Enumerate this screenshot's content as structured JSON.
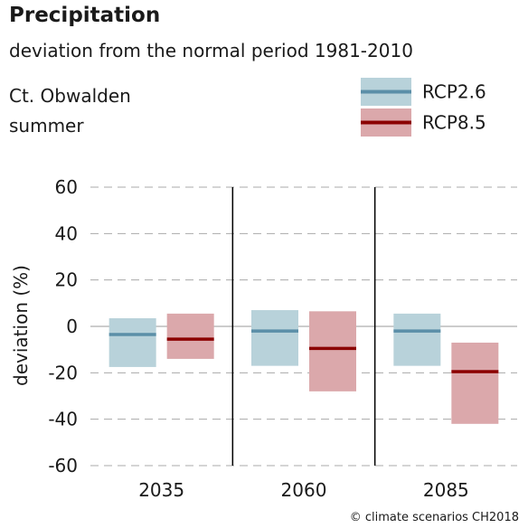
{
  "header": {
    "title": "Precipitation",
    "subtitle": "deviation from the normal period 1981-2010",
    "region": "Ct. Obwalden",
    "season": "summer"
  },
  "credit": "© climate scenarios CH2018",
  "colors": {
    "rcp26_box": "#b8d2da",
    "rcp26_median": "#5b8fa8",
    "rcp85_box": "#dba8ab",
    "rcp85_median": "#8b0000",
    "grid": "#aaaaaa",
    "zero_line": "#999999",
    "separator": "#000000"
  },
  "chart_data": {
    "type": "bar",
    "subtype": "range-boxes-with-median",
    "title": "Precipitation",
    "subtitle": "deviation from the normal period 1981-2010",
    "xlabel": "",
    "ylabel": "deviation (%)",
    "ylim": [
      -60,
      60
    ],
    "yticks": [
      60,
      40,
      20,
      0,
      -20,
      -40,
      -60
    ],
    "grid": true,
    "legend_position": "top-right",
    "categories": [
      "2035",
      "2060",
      "2085"
    ],
    "series": [
      {
        "name": "RCP2.6",
        "color": "#b8d2da",
        "median_color": "#5b8fa8",
        "low": [
          -17.5,
          -17,
          -17
        ],
        "median": [
          -3.5,
          -2,
          -2
        ],
        "high": [
          3.5,
          7,
          5.5
        ]
      },
      {
        "name": "RCP8.5",
        "color": "#dba8ab",
        "median_color": "#8b0000",
        "low": [
          -14,
          -28,
          -42
        ],
        "median": [
          -5.5,
          -9.5,
          -19.5
        ],
        "high": [
          5.5,
          6.5,
          -7
        ]
      }
    ]
  }
}
